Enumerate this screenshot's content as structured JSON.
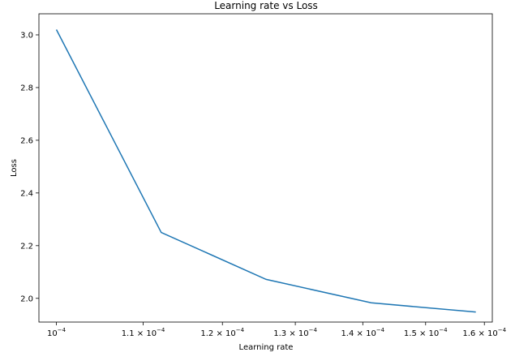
{
  "chart_data": {
    "type": "line",
    "title": "Learning rate vs Loss",
    "xlabel": "Learning rate",
    "ylabel": "Loss",
    "xscale": "log",
    "xlim": [
      9.81e-05,
      0.0001614
    ],
    "ylim": [
      1.91,
      3.08
    ],
    "x": [
      0.0001,
      0.0001122,
      0.0001259,
      0.0001413,
      0.0001585
    ],
    "y": [
      3.02,
      2.25,
      2.072,
      1.983,
      1.948
    ],
    "xticks": [
      {
        "value": 0.0001,
        "mantissa": "",
        "base": "10",
        "exp": "−4"
      },
      {
        "value": 0.00011,
        "mantissa": "1.1 × ",
        "base": "10",
        "exp": "−4"
      },
      {
        "value": 0.00012,
        "mantissa": "1.2 × ",
        "base": "10",
        "exp": "−4"
      },
      {
        "value": 0.00013,
        "mantissa": "1.3 × ",
        "base": "10",
        "exp": "−4"
      },
      {
        "value": 0.00014,
        "mantissa": "1.4 × ",
        "base": "10",
        "exp": "−4"
      },
      {
        "value": 0.00015,
        "mantissa": "1.5 × ",
        "base": "10",
        "exp": "−4"
      },
      {
        "value": 0.00016,
        "mantissa": "1.6 × ",
        "base": "10",
        "exp": "−4"
      }
    ],
    "yticks": [
      {
        "value": 2.0,
        "label": "2.0"
      },
      {
        "value": 2.2,
        "label": "2.2"
      },
      {
        "value": 2.4,
        "label": "2.4"
      },
      {
        "value": 2.6,
        "label": "2.6"
      },
      {
        "value": 2.8,
        "label": "2.8"
      },
      {
        "value": 3.0,
        "label": "3.0"
      }
    ],
    "series": [
      {
        "name": "loss",
        "color": "#1f77b4"
      }
    ],
    "grid": false
  }
}
